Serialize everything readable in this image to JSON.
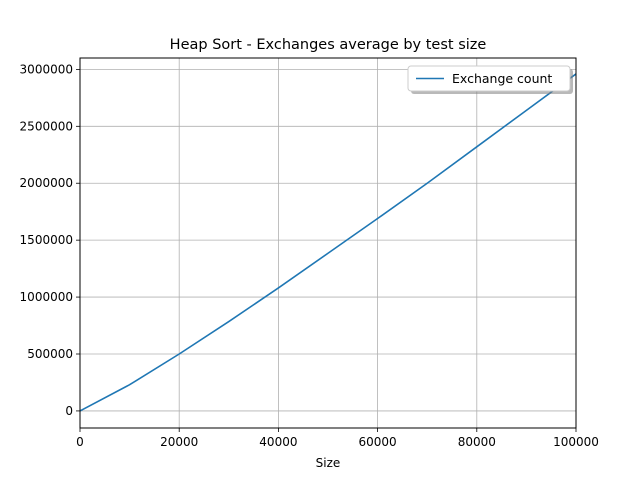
{
  "chart_data": {
    "type": "line",
    "title": "Heap Sort - Exchanges average by test size",
    "xlabel": "Size",
    "ylabel": "",
    "xlim": [
      0,
      100000
    ],
    "ylim": [
      -150000,
      3100000
    ],
    "x_ticks": [
      0,
      20000,
      40000,
      60000,
      80000,
      100000
    ],
    "y_ticks": [
      0,
      500000,
      1000000,
      1500000,
      2000000,
      2500000,
      3000000
    ],
    "x_tick_labels": [
      "0",
      "20000",
      "40000",
      "60000",
      "80000",
      "100000"
    ],
    "y_tick_labels": [
      "0",
      "500000",
      "1000000",
      "1500000",
      "2000000",
      "2500000",
      "3000000"
    ],
    "grid": true,
    "legend_position": "top-right",
    "colors": {
      "series": "#1f77b4",
      "grid": "#b0b0b0",
      "axes": "#000000"
    },
    "series": [
      {
        "name": "Exchange count",
        "x": [
          0,
          10000,
          20000,
          30000,
          40000,
          50000,
          60000,
          70000,
          80000,
          90000,
          100000
        ],
        "y": [
          0,
          230000,
          500000,
          785000,
          1080000,
          1385000,
          1690000,
          2000000,
          2320000,
          2640000,
          2960000
        ]
      }
    ]
  }
}
